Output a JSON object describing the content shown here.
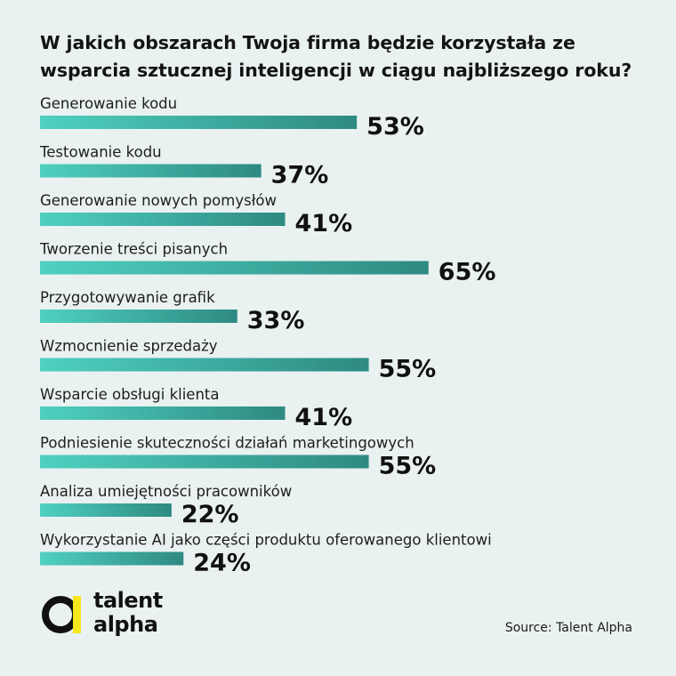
{
  "title": "W jakich obszarach Twoja firma będzie korzystała ze wsparcia sztucznej inteligencji w ciągu najbliższego roku?",
  "colors": {
    "background": "#e9f1f1",
    "bar_start": "#4fd0c0",
    "bar_end": "#2e8a82",
    "logo_yellow": "#f5e71c",
    "text": "#141414"
  },
  "logo": {
    "line1": "talent",
    "line2": "alpha",
    "icon": "talent-alpha-logo-icon"
  },
  "source": "Source: Talent Alpha",
  "chart_data": {
    "type": "bar",
    "orientation": "horizontal",
    "title": "W jakich obszarach Twoja firma będzie korzystała ze wsparcia sztucznej inteligencji w ciągu najbliższego roku?",
    "categories": [
      "Generowanie kodu",
      "Testowanie kodu",
      "Generowanie nowych pomysłów",
      "Tworzenie treści pisanych",
      "Przygotowywanie grafik",
      "Wzmocnienie sprzedaży",
      "Wsparcie obsługi klienta",
      "Podniesienie skuteczności działań marketingowych",
      "Analiza umiejętności pracowników",
      "Wykorzystanie AI jako części produktu oferowanego klientowi"
    ],
    "values": [
      53,
      37,
      41,
      65,
      33,
      55,
      41,
      55,
      22,
      24
    ],
    "value_labels": [
      "53%",
      "37%",
      "41%",
      "65%",
      "33%",
      "55%",
      "41%",
      "55%",
      "22%",
      "24%"
    ],
    "unit": "%",
    "xlim": [
      0,
      100
    ],
    "grid": false,
    "legend": "none"
  }
}
